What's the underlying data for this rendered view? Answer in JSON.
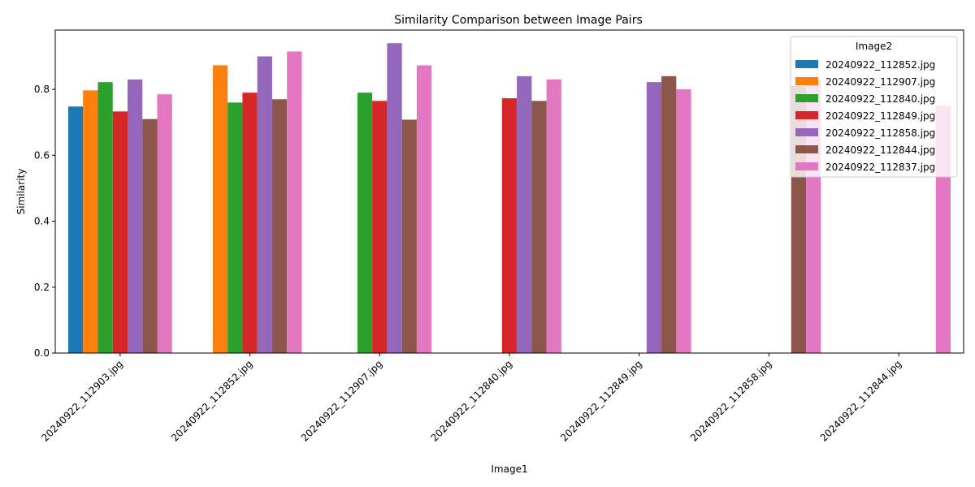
{
  "chart_data": {
    "type": "bar",
    "title": "Similarity Comparison between Image Pairs",
    "xlabel": "Image1",
    "ylabel": "Similarity",
    "ylim": [
      0,
      0.98
    ],
    "yticks": [
      "0.0",
      "0.2",
      "0.4",
      "0.6",
      "0.8"
    ],
    "grid": false,
    "legend": {
      "title": "Image2",
      "placement": "top-right"
    },
    "categories": [
      "20240922_112903.jpg",
      "20240922_112852.jpg",
      "20240922_112907.jpg",
      "20240922_112840.jpg",
      "20240922_112849.jpg",
      "20240922_112858.jpg",
      "20240922_112844.jpg"
    ],
    "series": [
      {
        "name": "20240922_112852.jpg",
        "color": "#1f77b4",
        "values": [
          0.748,
          null,
          null,
          null,
          null,
          null,
          null
        ]
      },
      {
        "name": "20240922_112907.jpg",
        "color": "#ff7f0e",
        "values": [
          0.797,
          0.873,
          null,
          null,
          null,
          null,
          null
        ]
      },
      {
        "name": "20240922_112840.jpg",
        "color": "#2ca02c",
        "values": [
          0.822,
          0.76,
          0.79,
          null,
          null,
          null,
          null
        ]
      },
      {
        "name": "20240922_112849.jpg",
        "color": "#d62728",
        "values": [
          0.733,
          0.79,
          0.765,
          0.773,
          null,
          null,
          null
        ]
      },
      {
        "name": "20240922_112858.jpg",
        "color": "#9467bd",
        "values": [
          0.83,
          0.9,
          0.94,
          0.84,
          0.822,
          null,
          null
        ]
      },
      {
        "name": "20240922_112844.jpg",
        "color": "#8c564b",
        "values": [
          0.71,
          0.77,
          0.708,
          0.765,
          0.84,
          0.81,
          null
        ]
      },
      {
        "name": "20240922_112837.jpg",
        "color": "#e377c2",
        "values": [
          0.785,
          0.915,
          0.873,
          0.83,
          0.8,
          0.83,
          0.75
        ]
      }
    ]
  }
}
